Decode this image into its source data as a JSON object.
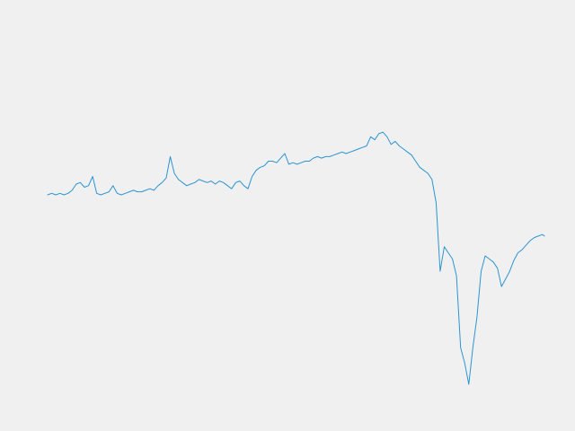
{
  "chart_data": {
    "type": "line",
    "title": "",
    "xlabel": "",
    "ylabel": "",
    "axes_visible": false,
    "grid": false,
    "legend": "none",
    "x_range": [
      0,
      243
    ],
    "y_range": [
      -124,
      84
    ],
    "series": [
      {
        "color": "#2b95d1",
        "x": [
          0,
          2,
          4,
          6,
          8,
          10,
          12,
          14,
          16,
          18,
          20,
          22,
          24,
          26,
          28,
          30,
          32,
          34,
          36,
          38,
          40,
          42,
          44,
          46,
          48,
          50,
          52,
          54,
          56,
          58,
          60,
          62,
          64,
          66,
          68,
          70,
          72,
          74,
          76,
          78,
          80,
          82,
          84,
          86,
          88,
          90,
          92,
          94,
          96,
          98,
          100,
          102,
          104,
          106,
          108,
          110,
          112,
          114,
          116,
          118,
          120,
          122,
          124,
          126,
          128,
          130,
          132,
          134,
          136,
          138,
          140,
          142,
          144,
          146,
          148,
          150,
          152,
          154,
          156,
          158,
          160,
          162,
          164,
          166,
          168,
          170,
          172,
          174,
          176,
          178,
          180,
          182,
          184,
          186,
          188,
          190,
          192,
          194,
          196,
          198,
          200,
          202,
          204,
          206,
          208,
          210,
          212,
          214,
          216,
          218,
          220,
          222,
          224,
          226,
          228,
          230,
          232,
          234,
          236,
          238,
          240,
          242,
          243
        ],
        "y": [
          0,
          1,
          0,
          1,
          0,
          1,
          3,
          7,
          8,
          5,
          6,
          12,
          1,
          0,
          1,
          2,
          6,
          1,
          0,
          1,
          2,
          3,
          2,
          2,
          3,
          4,
          3,
          6,
          8,
          11,
          25,
          14,
          10,
          8,
          6,
          7,
          8,
          10,
          9,
          8,
          9,
          7,
          9,
          8,
          6,
          4,
          8,
          9,
          6,
          4,
          12,
          16,
          18,
          19,
          22,
          22,
          21,
          24,
          27,
          20,
          21,
          20,
          21,
          22,
          22,
          24,
          25,
          24,
          25,
          25,
          26,
          27,
          28,
          27,
          28,
          29,
          30,
          31,
          32,
          38,
          36,
          40,
          41,
          38,
          33,
          35,
          32,
          30,
          28,
          26,
          22,
          18,
          16,
          14,
          10,
          -5,
          -50,
          -34,
          -38,
          -42,
          -53,
          -100,
          -110,
          -124,
          -100,
          -80,
          -50,
          -40,
          -42,
          -44,
          -48,
          -60,
          -55,
          -50,
          -43,
          -38,
          -36,
          -33,
          -30,
          -28,
          -27,
          -26,
          -27
        ]
      }
    ]
  }
}
